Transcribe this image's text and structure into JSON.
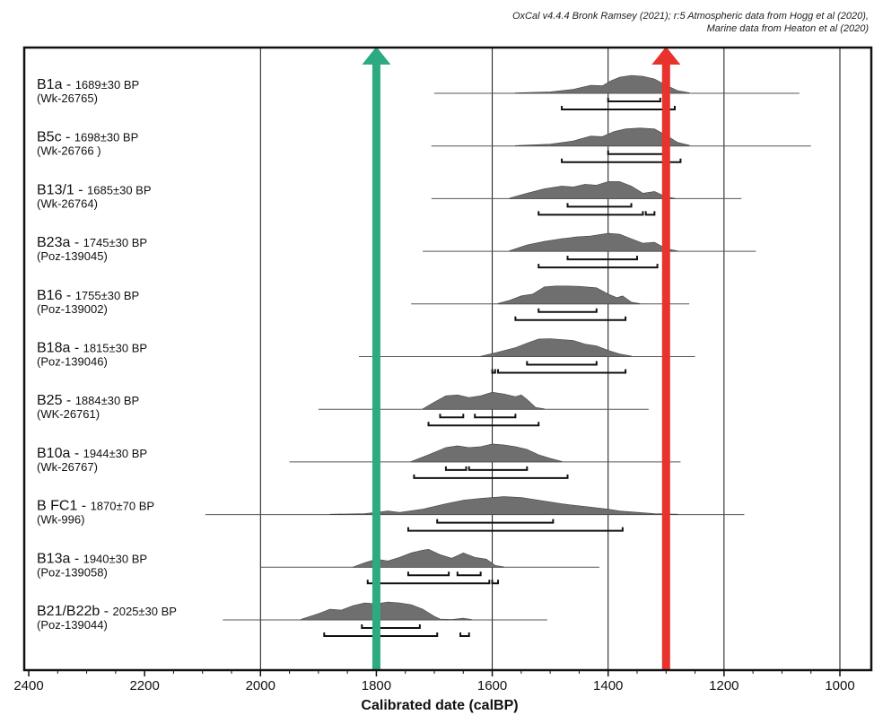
{
  "credit": {
    "line1": "OxCal v4.4.4 Bronk Ramsey (2021); r:5 Atmospheric data from Hogg et al (2020),",
    "line2": "Marine data from Heaton et al (2020)"
  },
  "colors": {
    "green_arrow": "#2daa82",
    "red_arrow": "#e8322d",
    "distribution": "#6f6f6f",
    "ink": "#111111"
  },
  "chart_data": {
    "type": "range-distribution",
    "xlabel": "Calibrated date (calBP)",
    "xlim": [
      2410,
      950
    ],
    "x_reversed": true,
    "xticks": [
      2400,
      2200,
      2000,
      1800,
      1600,
      1400,
      1200,
      1000
    ],
    "grid_lines_x": [
      2000,
      1600,
      1400,
      1200,
      1000
    ],
    "markers": [
      {
        "x": 1800,
        "color": "#2daa82"
      },
      {
        "x": 1300,
        "color": "#e8322d"
      }
    ],
    "samples": [
      {
        "name": "B1a",
        "age": "1689±30 BP",
        "code": "(Wk-26765)",
        "line": [
          1700,
          1070
        ],
        "dist": [
          [
            1560,
            0.02
          ],
          [
            1500,
            0.08
          ],
          [
            1460,
            0.22
          ],
          [
            1430,
            0.45
          ],
          [
            1410,
            0.42
          ],
          [
            1395,
            0.7
          ],
          [
            1380,
            0.9
          ],
          [
            1360,
            1.0
          ],
          [
            1340,
            0.95
          ],
          [
            1320,
            0.8
          ],
          [
            1300,
            0.45
          ],
          [
            1280,
            0.15
          ],
          [
            1260,
            0.03
          ]
        ],
        "r1": [
          [
            1400,
            1310
          ]
        ],
        "r2": [
          [
            1480,
            1285
          ]
        ]
      },
      {
        "name": "B5c",
        "age": "1698±30 BP",
        "code": "(Wk-26766 )",
        "line": [
          1705,
          1050
        ],
        "dist": [
          [
            1560,
            0.02
          ],
          [
            1500,
            0.1
          ],
          [
            1460,
            0.28
          ],
          [
            1430,
            0.55
          ],
          [
            1410,
            0.52
          ],
          [
            1390,
            0.8
          ],
          [
            1370,
            0.95
          ],
          [
            1345,
            1.0
          ],
          [
            1320,
            0.95
          ],
          [
            1300,
            0.6
          ],
          [
            1280,
            0.2
          ],
          [
            1260,
            0.04
          ]
        ],
        "r1": [
          [
            1400,
            1305
          ]
        ],
        "r2": [
          [
            1480,
            1275
          ]
        ]
      },
      {
        "name": "B13/1",
        "age": "1685±30 BP",
        "code": "(Wk-26764)",
        "line": [
          1705,
          1170
        ],
        "dist": [
          [
            1570,
            0.03
          ],
          [
            1540,
            0.3
          ],
          [
            1510,
            0.55
          ],
          [
            1480,
            0.7
          ],
          [
            1460,
            0.65
          ],
          [
            1440,
            0.8
          ],
          [
            1420,
            0.75
          ],
          [
            1400,
            0.95
          ],
          [
            1380,
            0.95
          ],
          [
            1360,
            0.7
          ],
          [
            1340,
            0.3
          ],
          [
            1320,
            0.4
          ],
          [
            1300,
            0.1
          ],
          [
            1285,
            0.02
          ]
        ],
        "r1": [
          [
            1470,
            1360
          ]
        ],
        "r2": [
          [
            1520,
            1340
          ],
          [
            1335,
            1320
          ]
        ]
      },
      {
        "name": "B23a",
        "age": "1745±30 BP",
        "code": "(Poz-139045)",
        "line": [
          1720,
          1145
        ],
        "dist": [
          [
            1570,
            0.03
          ],
          [
            1540,
            0.35
          ],
          [
            1510,
            0.55
          ],
          [
            1480,
            0.7
          ],
          [
            1455,
            0.8
          ],
          [
            1430,
            0.85
          ],
          [
            1400,
            1.0
          ],
          [
            1380,
            0.95
          ],
          [
            1360,
            0.7
          ],
          [
            1340,
            0.45
          ],
          [
            1320,
            0.5
          ],
          [
            1300,
            0.15
          ],
          [
            1280,
            0.02
          ]
        ],
        "r1": [
          [
            1470,
            1350
          ]
        ],
        "r2": [
          [
            1520,
            1315
          ]
        ]
      },
      {
        "name": "B16",
        "age": "1755±30 BP",
        "code": "(Poz-139002)",
        "line": [
          1740,
          1260
        ],
        "dist": [
          [
            1590,
            0.03
          ],
          [
            1570,
            0.2
          ],
          [
            1550,
            0.45
          ],
          [
            1530,
            0.55
          ],
          [
            1510,
            0.95
          ],
          [
            1490,
            1.0
          ],
          [
            1470,
            1.0
          ],
          [
            1450,
            0.98
          ],
          [
            1420,
            0.9
          ],
          [
            1400,
            0.55
          ],
          [
            1385,
            0.35
          ],
          [
            1375,
            0.45
          ],
          [
            1360,
            0.1
          ],
          [
            1345,
            0.02
          ]
        ],
        "r1": [
          [
            1520,
            1420
          ]
        ],
        "r2": [
          [
            1560,
            1370
          ]
        ]
      },
      {
        "name": "B18a",
        "age": "1815±30 BP",
        "code": "(Poz-139046)",
        "line": [
          1830,
          1250
        ],
        "dist": [
          [
            1620,
            0.02
          ],
          [
            1590,
            0.25
          ],
          [
            1560,
            0.5
          ],
          [
            1540,
            0.75
          ],
          [
            1520,
            0.98
          ],
          [
            1500,
            1.0
          ],
          [
            1480,
            0.95
          ],
          [
            1460,
            0.9
          ],
          [
            1440,
            0.7
          ],
          [
            1420,
            0.6
          ],
          [
            1400,
            0.35
          ],
          [
            1380,
            0.15
          ],
          [
            1360,
            0.03
          ]
        ],
        "r1": [
          [
            1540,
            1420
          ]
        ],
        "r2": [
          [
            1600,
            1595
          ],
          [
            1590,
            1370
          ]
        ]
      },
      {
        "name": "B25",
        "age": "1884±30 BP",
        "code": "(WK-26761)",
        "line": [
          1900,
          1330
        ],
        "dist": [
          [
            1720,
            0.02
          ],
          [
            1700,
            0.4
          ],
          [
            1680,
            0.75
          ],
          [
            1660,
            0.8
          ],
          [
            1640,
            0.65
          ],
          [
            1620,
            0.75
          ],
          [
            1600,
            0.95
          ],
          [
            1580,
            0.85
          ],
          [
            1560,
            0.7
          ],
          [
            1550,
            0.8
          ],
          [
            1540,
            0.55
          ],
          [
            1525,
            0.1
          ],
          [
            1510,
            0.02
          ]
        ],
        "r1": [
          [
            1690,
            1650
          ],
          [
            1630,
            1560
          ]
        ],
        "r2": [
          [
            1710,
            1520
          ]
        ]
      },
      {
        "name": "B10a",
        "age": "1944±30 BP",
        "code": "(Wk-26767)",
        "line": [
          1950,
          1275
        ],
        "dist": [
          [
            1740,
            0.02
          ],
          [
            1710,
            0.4
          ],
          [
            1680,
            0.8
          ],
          [
            1660,
            0.9
          ],
          [
            1640,
            0.8
          ],
          [
            1620,
            0.85
          ],
          [
            1600,
            1.0
          ],
          [
            1580,
            0.95
          ],
          [
            1560,
            0.85
          ],
          [
            1540,
            0.7
          ],
          [
            1520,
            0.4
          ],
          [
            1500,
            0.2
          ],
          [
            1480,
            0.03
          ]
        ],
        "r1": [
          [
            1680,
            1645
          ],
          [
            1640,
            1540
          ]
        ],
        "r2": [
          [
            1735,
            1470
          ]
        ]
      },
      {
        "name": "B FC1",
        "age": "1870±70 BP",
        "code": "(Wk-996)",
        "line": [
          2095,
          1165
        ],
        "dist": [
          [
            1880,
            0.02
          ],
          [
            1820,
            0.05
          ],
          [
            1780,
            0.2
          ],
          [
            1760,
            0.12
          ],
          [
            1720,
            0.3
          ],
          [
            1700,
            0.45
          ],
          [
            1680,
            0.6
          ],
          [
            1650,
            0.8
          ],
          [
            1620,
            0.9
          ],
          [
            1580,
            1.0
          ],
          [
            1550,
            0.95
          ],
          [
            1520,
            0.8
          ],
          [
            1480,
            0.6
          ],
          [
            1440,
            0.45
          ],
          [
            1400,
            0.3
          ],
          [
            1380,
            0.2
          ],
          [
            1360,
            0.15
          ],
          [
            1320,
            0.05
          ],
          [
            1280,
            0.02
          ]
        ],
        "r1": [
          [
            1695,
            1495
          ]
        ],
        "r2": [
          [
            1745,
            1375
          ]
        ]
      },
      {
        "name": "B13a",
        "age": "1940±30 BP",
        "code": "(Poz-139058)",
        "line": [
          2000,
          1415
        ],
        "dist": [
          [
            1840,
            0.02
          ],
          [
            1820,
            0.25
          ],
          [
            1800,
            0.45
          ],
          [
            1780,
            0.35
          ],
          [
            1760,
            0.55
          ],
          [
            1740,
            0.8
          ],
          [
            1720,
            0.95
          ],
          [
            1710,
            1.0
          ],
          [
            1690,
            0.7
          ],
          [
            1670,
            0.5
          ],
          [
            1650,
            0.8
          ],
          [
            1630,
            0.55
          ],
          [
            1610,
            0.45
          ],
          [
            1595,
            0.1
          ],
          [
            1580,
            0.02
          ]
        ],
        "r1": [
          [
            1745,
            1675
          ],
          [
            1660,
            1620
          ]
        ],
        "r2": [
          [
            1815,
            1605
          ],
          [
            1600,
            1590
          ]
        ]
      },
      {
        "name": "B21/B22b",
        "age": "2025±30 BP",
        "code": "(Poz-139044)",
        "line": [
          2065,
          1505
        ],
        "dist": [
          [
            1930,
            0.03
          ],
          [
            1900,
            0.35
          ],
          [
            1880,
            0.6
          ],
          [
            1860,
            0.55
          ],
          [
            1840,
            0.8
          ],
          [
            1820,
            0.95
          ],
          [
            1800,
            0.9
          ],
          [
            1780,
            1.0
          ],
          [
            1760,
            0.95
          ],
          [
            1740,
            0.85
          ],
          [
            1720,
            0.6
          ],
          [
            1700,
            0.2
          ],
          [
            1690,
            0.05
          ],
          [
            1670,
            0.02
          ],
          [
            1650,
            0.1
          ],
          [
            1635,
            0.02
          ]
        ],
        "r1": [
          [
            1825,
            1725
          ]
        ],
        "r2": [
          [
            1890,
            1695
          ],
          [
            1655,
            1640
          ]
        ]
      }
    ]
  }
}
